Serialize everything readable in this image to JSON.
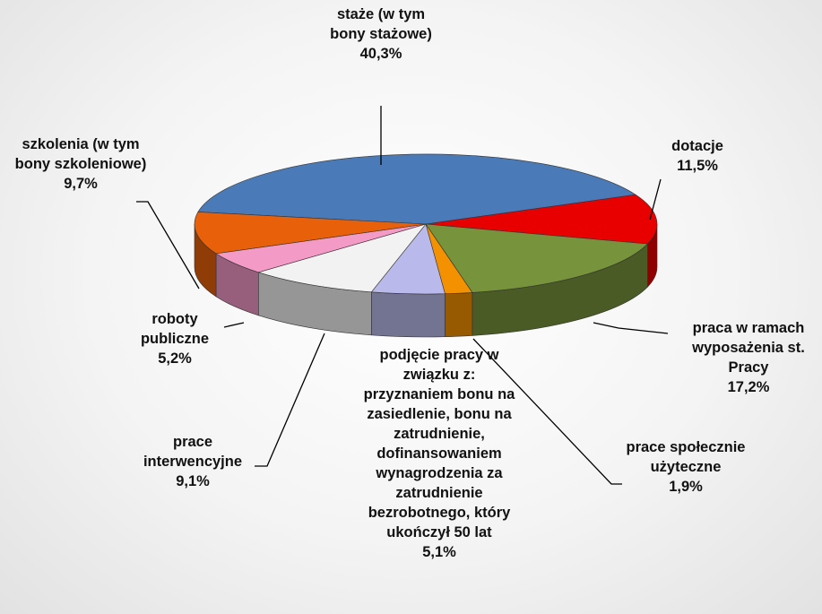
{
  "chart_data": {
    "type": "pie3d",
    "categories": [
      "staże (w tym bony stażowe)",
      "dotacje",
      "praca w ramach wyposażenia st. Pracy",
      "prace społecznie użyteczne",
      "podjęcie pracy w związku z: przyznaniem bonu na zasiedlenie, bonu na zatrudnienie, dofinansowaniem wynagrodzenia za zatrudnienie bezrobotnego, który ukończył 50 lat",
      "prace interwencyjne",
      "roboty publiczne",
      "szkolenia (w tym bony szkoleniowe)"
    ],
    "values": [
      40.3,
      11.5,
      17.2,
      1.9,
      5.1,
      9.1,
      5.2,
      9.7
    ],
    "value_labels": [
      "40,3%",
      "11,5%",
      "17,2%",
      "1,9%",
      "5,1%",
      "9,1%",
      "5,2%",
      "9,7%"
    ],
    "colors": [
      "#4a7ab8",
      "#e80000",
      "#77933c",
      "#f39100",
      "#b9b9ec",
      "#f2f2f2",
      "#f49ac6",
      "#e8610a"
    ]
  }
}
